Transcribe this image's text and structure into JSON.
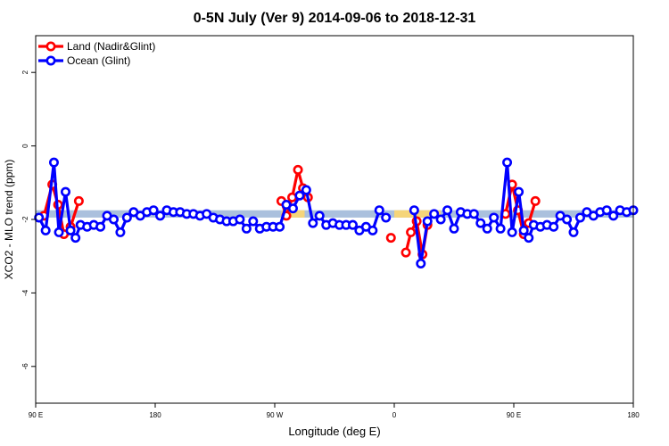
{
  "chart_data": {
    "type": "line",
    "title": "0-5N July (Ver 9)   2014-09-06 to 2018-12-31",
    "xlabel": "Longitude (deg E)",
    "ylabel": "XCO2 - MLO trend (ppm)",
    "xlim": [
      90,
      450
    ],
    "ylim": [
      -7,
      3
    ],
    "x_ticks": [
      {
        "value": 90,
        "label": "90 E"
      },
      {
        "value": 162,
        "label": "180"
      },
      {
        "value": 234,
        "label": "90 W"
      },
      {
        "value": 306,
        "label": "0"
      },
      {
        "value": 378,
        "label": "90 E"
      },
      {
        "value": 450,
        "label": "180"
      }
    ],
    "y_ticks": [
      {
        "value": 2,
        "label": "2"
      },
      {
        "value": 0,
        "label": "0"
      },
      {
        "value": -2,
        "label": "-2"
      },
      {
        "value": -4,
        "label": "-4"
      },
      {
        "value": -6,
        "label": "-6"
      }
    ],
    "legend": {
      "placement": "top-left",
      "items": [
        {
          "label": "Land (Nadir&Glint)",
          "color": "#ff0000"
        },
        {
          "label": "Ocean (Glint)",
          "color": "#0000ff"
        }
      ]
    },
    "bands": [
      {
        "x": [
          90,
          450
        ],
        "y": [
          -1.75,
          -1.95
        ],
        "color": "#aac0dd"
      },
      {
        "x": [
          238,
          252
        ],
        "y": [
          -1.75,
          -1.95
        ],
        "color": "#f5d57a"
      },
      {
        "x": [
          306,
          334
        ],
        "y": [
          -1.75,
          -1.95
        ],
        "color": "#f5d57a"
      }
    ],
    "series": [
      {
        "name": "Land (Nadir&Glint)",
        "color": "#ff0000",
        "segments": [
          [
            [
              95,
              -1.9
            ],
            [
              100,
              -1.05
            ],
            [
              103.5,
              -1.6
            ],
            [
              107,
              -2.4
            ],
            [
              111,
              -2.2
            ],
            [
              116,
              -1.5
            ]
          ],
          [
            [
              238,
              -1.5
            ],
            [
              241,
              -1.9
            ],
            [
              244.5,
              -1.4
            ],
            [
              248,
              -0.65
            ],
            [
              251,
              -1.15
            ],
            [
              254,
              -1.4
            ]
          ],
          [
            [
              304,
              -2.5
            ]
          ],
          [
            [
              313,
              -2.9
            ],
            [
              316,
              -2.35
            ],
            [
              319.5,
              -2.05
            ],
            [
              323,
              -2.95
            ],
            [
              326,
              -2.15
            ]
          ],
          [
            [
              373,
              -1.85
            ],
            [
              377,
              -1.05
            ],
            [
              380.5,
              -1.75
            ],
            [
              384,
              -2.4
            ],
            [
              387,
              -2.1
            ],
            [
              391,
              -1.5
            ]
          ]
        ]
      },
      {
        "name": "Ocean (Glint)",
        "color": "#0000ff",
        "segments": [
          [
            [
              92,
              -1.95
            ],
            [
              96,
              -2.3
            ],
            [
              101,
              -0.45
            ],
            [
              104,
              -2.35
            ],
            [
              108,
              -1.25
            ],
            [
              111,
              -2.3
            ],
            [
              114,
              -2.5
            ],
            [
              117,
              -2.15
            ],
            [
              121,
              -2.2
            ],
            [
              125,
              -2.15
            ],
            [
              129,
              -2.2
            ],
            [
              133,
              -1.9
            ],
            [
              137,
              -2.0
            ],
            [
              141,
              -2.35
            ],
            [
              145,
              -1.95
            ],
            [
              149,
              -1.8
            ],
            [
              153,
              -1.9
            ],
            [
              157,
              -1.8
            ],
            [
              161,
              -1.75
            ],
            [
              165,
              -1.9
            ],
            [
              169,
              -1.75
            ],
            [
              173,
              -1.8
            ],
            [
              177,
              -1.8
            ],
            [
              181,
              -1.85
            ],
            [
              185,
              -1.85
            ],
            [
              189,
              -1.9
            ],
            [
              193,
              -1.85
            ],
            [
              197,
              -1.95
            ],
            [
              201,
              -2.0
            ],
            [
              205,
              -2.05
            ],
            [
              209,
              -2.05
            ],
            [
              213,
              -2.0
            ],
            [
              217,
              -2.25
            ],
            [
              221,
              -2.05
            ],
            [
              225,
              -2.25
            ],
            [
              229,
              -2.2
            ],
            [
              233,
              -2.2
            ],
            [
              237,
              -2.2
            ],
            [
              241,
              -1.6
            ],
            [
              245,
              -1.7
            ],
            [
              249,
              -1.35
            ],
            [
              253,
              -1.2
            ],
            [
              257,
              -2.1
            ],
            [
              261,
              -1.9
            ],
            [
              265,
              -2.15
            ],
            [
              269,
              -2.1
            ],
            [
              273,
              -2.15
            ],
            [
              277,
              -2.15
            ],
            [
              281,
              -2.15
            ],
            [
              285,
              -2.3
            ],
            [
              289,
              -2.2
            ],
            [
              293,
              -2.3
            ],
            [
              297,
              -1.75
            ],
            [
              301,
              -1.95
            ]
          ],
          [
            [
              318,
              -1.75
            ],
            [
              322,
              -3.2
            ],
            [
              326,
              -2.05
            ],
            [
              330,
              -1.85
            ],
            [
              334,
              -2.0
            ],
            [
              338,
              -1.75
            ],
            [
              342,
              -2.25
            ],
            [
              346,
              -1.8
            ],
            [
              350,
              -1.85
            ],
            [
              354,
              -1.85
            ],
            [
              358,
              -2.1
            ],
            [
              362,
              -2.25
            ],
            [
              366,
              -1.95
            ],
            [
              370,
              -2.25
            ],
            [
              374,
              -0.45
            ],
            [
              377,
              -2.35
            ],
            [
              381,
              -1.25
            ],
            [
              384,
              -2.3
            ],
            [
              387,
              -2.5
            ],
            [
              390,
              -2.15
            ],
            [
              394,
              -2.2
            ],
            [
              398,
              -2.15
            ],
            [
              402,
              -2.2
            ],
            [
              406,
              -1.9
            ],
            [
              410,
              -2.0
            ],
            [
              414,
              -2.35
            ],
            [
              418,
              -1.95
            ],
            [
              422,
              -1.8
            ],
            [
              426,
              -1.9
            ],
            [
              430,
              -1.8
            ],
            [
              434,
              -1.75
            ],
            [
              438,
              -1.9
            ],
            [
              442,
              -1.75
            ],
            [
              446,
              -1.8
            ],
            [
              450,
              -1.75
            ]
          ]
        ]
      }
    ]
  }
}
